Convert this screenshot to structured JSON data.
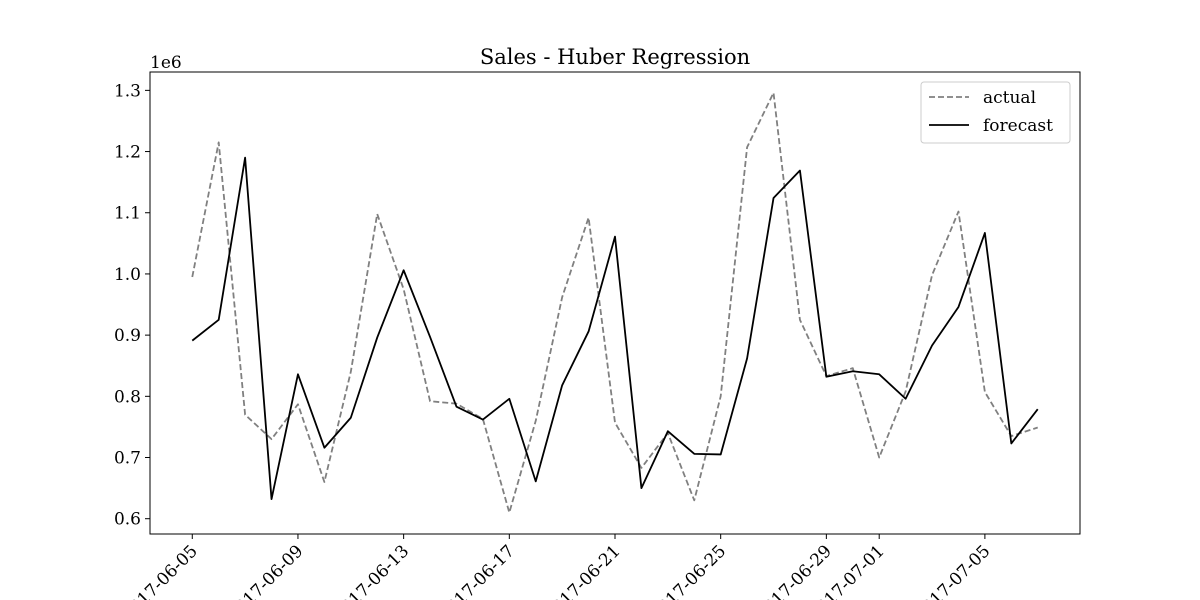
{
  "chart_data": {
    "type": "line",
    "title": "Sales - Huber Regression",
    "xlabel": "",
    "ylabel": "",
    "y_offset_label": "1e6",
    "x": [
      "2017-06-05",
      "2017-06-06",
      "2017-06-07",
      "2017-06-08",
      "2017-06-09",
      "2017-06-10",
      "2017-06-11",
      "2017-06-12",
      "2017-06-13",
      "2017-06-14",
      "2017-06-15",
      "2017-06-16",
      "2017-06-17",
      "2017-06-18",
      "2017-06-19",
      "2017-06-20",
      "2017-06-21",
      "2017-06-22",
      "2017-06-23",
      "2017-06-24",
      "2017-06-25",
      "2017-06-26",
      "2017-06-27",
      "2017-06-28",
      "2017-06-29",
      "2017-06-30",
      "2017-07-01",
      "2017-07-02",
      "2017-07-03",
      "2017-07-04",
      "2017-07-05",
      "2017-07-06",
      "2017-07-07"
    ],
    "series": [
      {
        "name": "actual",
        "color": "#808080",
        "style": "dashed",
        "values": [
          995000,
          1215000,
          770000,
          730000,
          787000,
          660000,
          840000,
          1098000,
          975000,
          792000,
          788000,
          763000,
          610000,
          760000,
          962000,
          1092000,
          757000,
          683000,
          740000,
          630000,
          800000,
          1207000,
          1296000,
          925000,
          833000,
          846000,
          700000,
          808000,
          998000,
          1102000,
          807000,
          735000,
          749000
        ]
      },
      {
        "name": "forecast",
        "color": "#000000",
        "style": "solid",
        "values": [
          891000,
          925000,
          1190000,
          632000,
          836000,
          716000,
          765000,
          896000,
          1006000,
          897000,
          783000,
          762000,
          796000,
          661000,
          818000,
          906000,
          1061000,
          650000,
          743000,
          706000,
          705000,
          862000,
          1124000,
          1169000,
          832000,
          841000,
          836000,
          796000,
          883000,
          946000,
          1067000,
          723000,
          779000
        ]
      }
    ],
    "xticks": [
      "2017-06-05",
      "2017-06-09",
      "2017-06-13",
      "2017-06-17",
      "2017-06-21",
      "2017-06-25",
      "2017-06-29",
      "2017-07-01",
      "2017-07-05"
    ],
    "xtick_labels": [
      "2017-06-05",
      "2017-06-09",
      "2017-06-13",
      "2017-06-17",
      "2017-06-21",
      "2017-06-25",
      "2017-06-29",
      "2017-07-01",
      "2017-07-05"
    ],
    "yticks": [
      600000,
      700000,
      800000,
      900000,
      1000000,
      1100000,
      1200000,
      1300000
    ],
    "ytick_labels": [
      "0.6",
      "0.7",
      "0.8",
      "0.9",
      "1.0",
      "1.1",
      "1.2",
      "1.3"
    ],
    "ylim": [
      575000,
      1330000
    ],
    "legend_position": "top-right",
    "grid": false
  }
}
